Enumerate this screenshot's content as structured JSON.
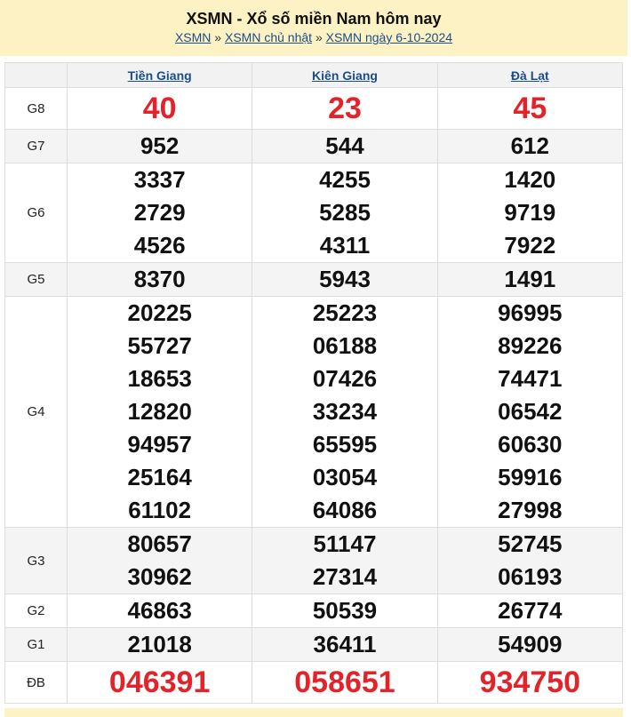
{
  "header": {
    "title": "XSMN - Xổ số miền Nam hôm nay",
    "breadcrumbs": [
      "XSMN",
      "XSMN chủ nhật",
      "XSMN ngày 6-10-2024"
    ],
    "separator": "»"
  },
  "provinces": [
    "Tiền Giang",
    "Kiên Giang",
    "Đà Lạt"
  ],
  "prizes": [
    {
      "label": "G8",
      "highlight": true,
      "values": [
        [
          "40"
        ],
        [
          "23"
        ],
        [
          "45"
        ]
      ]
    },
    {
      "label": "G7",
      "values": [
        [
          "952"
        ],
        [
          "544"
        ],
        [
          "612"
        ]
      ]
    },
    {
      "label": "G6",
      "values": [
        [
          "3337",
          "2729",
          "4526"
        ],
        [
          "4255",
          "5285",
          "4311"
        ],
        [
          "1420",
          "9719",
          "7922"
        ]
      ]
    },
    {
      "label": "G5",
      "values": [
        [
          "8370"
        ],
        [
          "5943"
        ],
        [
          "1491"
        ]
      ]
    },
    {
      "label": "G4",
      "values": [
        [
          "20225",
          "55727",
          "18653",
          "12820",
          "94957",
          "25164",
          "61102"
        ],
        [
          "25223",
          "06188",
          "07426",
          "33234",
          "65595",
          "03054",
          "64086"
        ],
        [
          "96995",
          "89226",
          "74471",
          "06542",
          "60630",
          "59916",
          "27998"
        ]
      ]
    },
    {
      "label": "G3",
      "values": [
        [
          "80657",
          "30962"
        ],
        [
          "51147",
          "27314"
        ],
        [
          "52745",
          "06193"
        ]
      ]
    },
    {
      "label": "G2",
      "values": [
        [
          "46863"
        ],
        [
          "50539"
        ],
        [
          "26774"
        ]
      ]
    },
    {
      "label": "G1",
      "values": [
        [
          "21018"
        ],
        [
          "36411"
        ],
        [
          "54909"
        ]
      ]
    },
    {
      "label": "ĐB",
      "highlight": true,
      "values": [
        [
          "046391"
        ],
        [
          "058651"
        ],
        [
          "934750"
        ]
      ]
    }
  ],
  "colors": {
    "banner": "#fcf2c4",
    "link": "#1a4d8c",
    "highlight": "#e3222a",
    "alt_row": "#f4f4f4"
  }
}
